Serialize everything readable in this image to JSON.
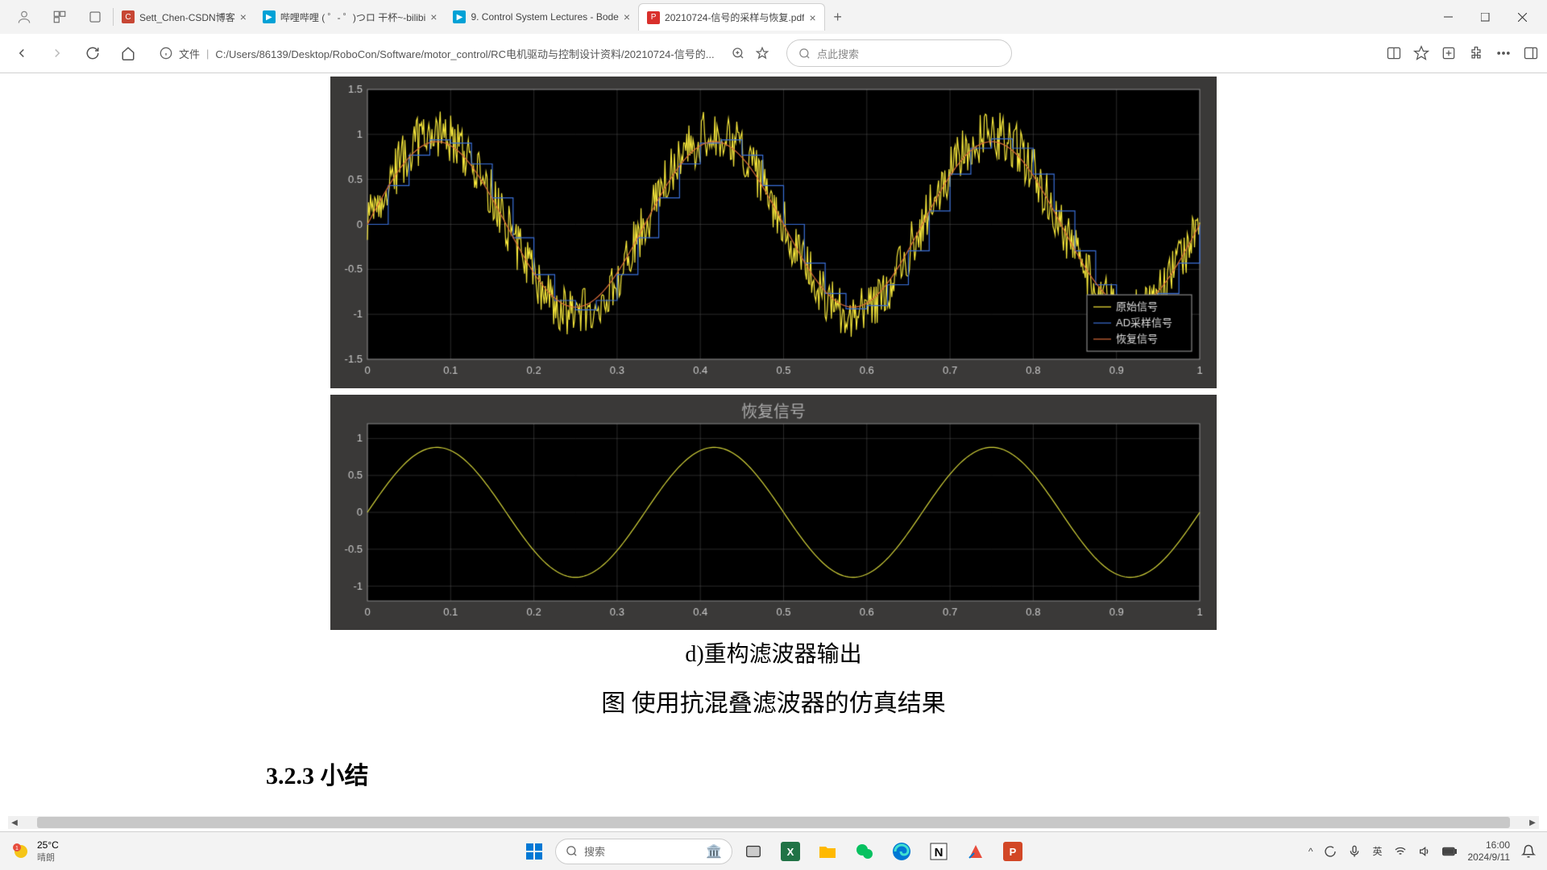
{
  "browser": {
    "tabs": [
      {
        "title": "Sett_Chen-CSDN博客",
        "favicon": "#c74634",
        "faviconText": "C"
      },
      {
        "title": "哔哩哔哩 ( ゜- ゜)つロ 干杯~-bilibi",
        "favicon": "#00a1d6",
        "faviconText": "▶"
      },
      {
        "title": "9. Control System Lectures - Bode",
        "favicon": "#00a1d6",
        "faviconText": "▶"
      },
      {
        "title": "20210724-信号的采样与恢复.pdf",
        "favicon": "#d9302c",
        "faviconText": "P",
        "active": true
      }
    ],
    "url_prefix": "文件",
    "url": "C:/Users/86139/Desktop/RoboCon/Software/motor_control/RC电机驱动与控制设计资料/20210724-信号的...",
    "search_placeholder": "点此搜索"
  },
  "document": {
    "caption_d": "d)重构滤波器输出",
    "caption_fig": "图  使用抗混叠滤波器的仿真结果",
    "section": "3.2.3 小结"
  },
  "chart1": {
    "type": "line",
    "background": "#000000",
    "frame": "#3a3938",
    "grid_color": "#555555",
    "text_color": "#cccccc",
    "xlim": [
      0,
      1
    ],
    "ylim": [
      -1.5,
      1.5
    ],
    "xticks": [
      0,
      0.1,
      0.2,
      0.3,
      0.4,
      0.5,
      0.6,
      0.7,
      0.8,
      0.9,
      1
    ],
    "yticks": [
      -1.5,
      -1,
      -0.5,
      0,
      0.5,
      1,
      1.5
    ],
    "series": [
      {
        "name": "原始信号",
        "color": "#f7e83b",
        "kind": "noisy_sine",
        "amp": 1.0,
        "freq": 3,
        "noise": 0.28
      },
      {
        "name": "AD采样信号",
        "color": "#3a6fd8",
        "kind": "step_sine",
        "amp": 0.95,
        "freq": 3,
        "steps": 40
      },
      {
        "name": "恢复信号",
        "color": "#d96b3a",
        "kind": "sine",
        "amp": 0.92,
        "freq": 3
      }
    ],
    "legend_pos": "bottom-right"
  },
  "chart2": {
    "type": "line",
    "title": "恢复信号",
    "background": "#000000",
    "frame": "#3a3938",
    "grid_color": "#555555",
    "text_color": "#cccccc",
    "xlim": [
      0,
      1
    ],
    "ylim": [
      -1.2,
      1.2
    ],
    "xticks": [
      0,
      0.1,
      0.2,
      0.3,
      0.4,
      0.5,
      0.6,
      0.7,
      0.8,
      0.9,
      1
    ],
    "yticks": [
      -1,
      -0.5,
      0,
      0.5,
      1
    ],
    "series": [
      {
        "color": "#d4d43a",
        "kind": "sine",
        "amp": 0.88,
        "freq": 3
      }
    ]
  },
  "taskbar": {
    "temp": "25°C",
    "condition": "晴朗",
    "search": "搜索",
    "ime": "英",
    "time": "16:00",
    "date": "2024/9/11"
  }
}
